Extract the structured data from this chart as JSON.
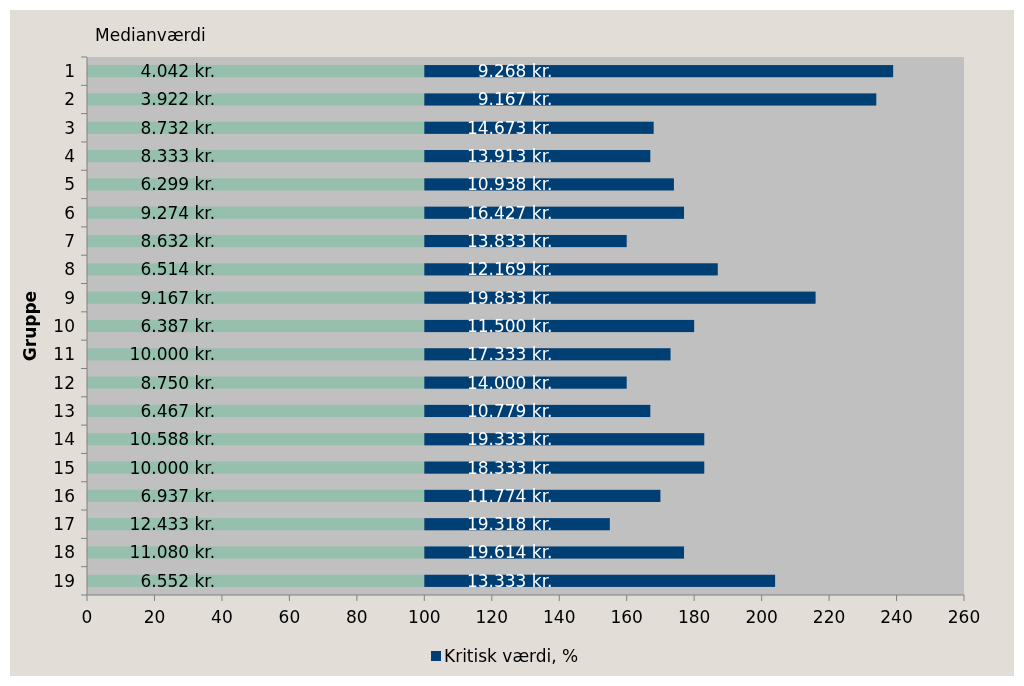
{
  "chart_data": {
    "type": "bar",
    "orientation": "horizontal",
    "stacked": true,
    "ylabel": "Gruppe",
    "categories": [
      "1",
      "2",
      "3",
      "4",
      "5",
      "6",
      "7",
      "8",
      "9",
      "10",
      "11",
      "12",
      "13",
      "14",
      "15",
      "16",
      "17",
      "18",
      "19"
    ],
    "series": [
      {
        "name": "Medianværdi",
        "color": "#97bfae",
        "values": [
          100,
          100,
          100,
          100,
          100,
          100,
          100,
          100,
          100,
          100,
          100,
          100,
          100,
          100,
          100,
          100,
          100,
          100,
          100
        ]
      },
      {
        "name": "Kritisk værdi, %",
        "color": "#003f74",
        "values": [
          139,
          134,
          68,
          67,
          74,
          77,
          60,
          87,
          116,
          80,
          73,
          60,
          67,
          83,
          83,
          70,
          55,
          77,
          104
        ]
      }
    ],
    "annotations": [
      "4.042 kr.",
      "3.922 kr.",
      "8.732 kr.",
      "8.333 kr.",
      "6.299 kr.",
      "9.274 kr.",
      "8.632 kr.",
      "6.514 kr.",
      "9.167 kr.",
      "6.387 kr.",
      "10.000 kr.",
      "8.750 kr.",
      "6.467 kr.",
      "10.588 kr.",
      "10.000 kr.",
      "6.937 kr.",
      "12.433 kr.",
      "11.080 kr.",
      "6.552 kr.",
      "9.268 kr.",
      "9.167 kr.",
      "14.673 kr.",
      "13.913 kr.",
      "10.938 kr.",
      "16.427 kr.",
      "13.833 kr.",
      "12.169 kr.",
      "19.833 kr.",
      "11.500 kr.",
      "17.333 kr.",
      "14.000 kr.",
      "10.779 kr.",
      "19.333 kr.",
      "18.333 kr.",
      "11.774 kr.",
      "19.318 kr.",
      "19.614 kr.",
      "13.333 kr."
    ],
    "xlim": [
      0,
      260
    ],
    "xticks": [
      0,
      20,
      40,
      60,
      80,
      100,
      120,
      140,
      160,
      180,
      200,
      220,
      240,
      260
    ],
    "grid": false,
    "legend": "bottom"
  }
}
